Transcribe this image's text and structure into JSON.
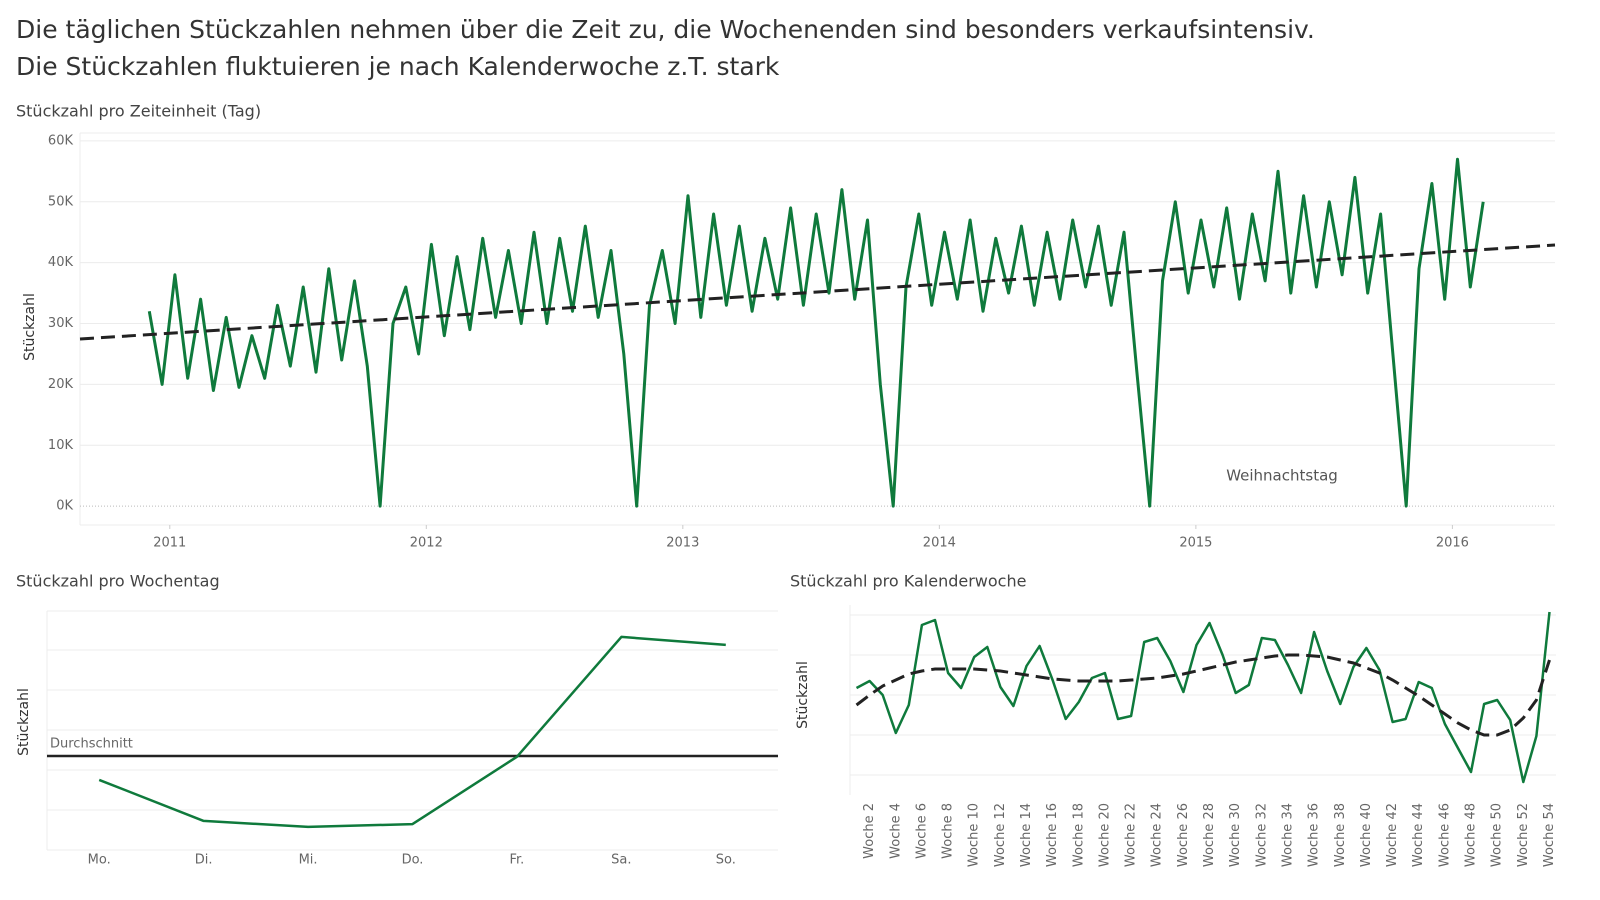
{
  "title_lines": [
    "Die täglichen Stückzahlen nehmen über die Zeit zu, die Wochenenden sind besonders verkaufsintensiv.",
    "Die Stückzahlen fluktuieren je nach Kalenderwoche z.T. stark"
  ],
  "chart_data": [
    {
      "type": "line",
      "title": "Stückzahl pro Zeiteinheit (Tag)",
      "y_label": "Stückzahl",
      "color": "#0f7a3c",
      "annotation": "Weihnachtstag",
      "xlim": [
        2010.65,
        2016.4
      ],
      "xticks": [
        2011,
        2012,
        2013,
        2014,
        2015,
        2016
      ],
      "ylim": [
        -3100,
        61300
      ],
      "yticks": [
        {
          "value": 0,
          "label": "0K"
        },
        {
          "value": 10000,
          "label": "10K"
        },
        {
          "value": 20000,
          "label": "20K"
        },
        {
          "value": 30000,
          "label": "30K"
        },
        {
          "value": 40000,
          "label": "40K"
        },
        {
          "value": 50000,
          "label": "50K"
        },
        {
          "value": 60000,
          "label": "60K"
        }
      ],
      "x": [
        2010.92,
        2010.97,
        2011.02,
        2011.07,
        2011.12,
        2011.17,
        2011.22,
        2011.27,
        2011.32,
        2011.37,
        2011.42,
        2011.47,
        2011.52,
        2011.57,
        2011.62,
        2011.67,
        2011.72,
        2011.77,
        2011.82,
        2011.87,
        2011.92,
        2011.97,
        2012.02,
        2012.07,
        2012.12,
        2012.17,
        2012.22,
        2012.27,
        2012.32,
        2012.37,
        2012.42,
        2012.47,
        2012.52,
        2012.57,
        2012.62,
        2012.67,
        2012.72,
        2012.77,
        2012.82,
        2012.87,
        2012.92,
        2012.97,
        2013.02,
        2013.07,
        2013.12,
        2013.17,
        2013.22,
        2013.27,
        2013.32,
        2013.37,
        2013.42,
        2013.47,
        2013.52,
        2013.57,
        2013.62,
        2013.67,
        2013.72,
        2013.77,
        2013.82,
        2013.87,
        2013.92,
        2013.97,
        2014.02,
        2014.07,
        2014.12,
        2014.17,
        2014.22,
        2014.27,
        2014.32,
        2014.37,
        2014.42,
        2014.47,
        2014.52,
        2014.57,
        2014.62,
        2014.67,
        2014.72,
        2014.77,
        2014.82,
        2014.87,
        2014.92,
        2014.97,
        2015.02,
        2015.07,
        2015.12,
        2015.17,
        2015.22,
        2015.27,
        2015.32,
        2015.37,
        2015.42,
        2015.47,
        2015.52,
        2015.57,
        2015.62,
        2015.67,
        2015.72,
        2015.77,
        2015.82,
        2015.87,
        2015.92,
        2015.97,
        2016.02,
        2016.07,
        2016.12
      ],
      "values": [
        32000,
        20000,
        38000,
        21000,
        34000,
        19000,
        31000,
        19500,
        28000,
        21000,
        33000,
        23000,
        36000,
        22000,
        39000,
        24000,
        37000,
        23000,
        0,
        30000,
        36000,
        25000,
        43000,
        28000,
        41000,
        29000,
        44000,
        31000,
        42000,
        30000,
        45000,
        30000,
        44000,
        32000,
        46000,
        31000,
        42000,
        25000,
        0,
        33000,
        42000,
        30000,
        51000,
        31000,
        48000,
        33000,
        46000,
        32000,
        44000,
        34000,
        49000,
        33000,
        48000,
        35000,
        52000,
        34000,
        47000,
        20000,
        0,
        36000,
        48000,
        33000,
        45000,
        34000,
        47000,
        32000,
        44000,
        35000,
        46000,
        33000,
        45000,
        34000,
        47000,
        36000,
        46000,
        33000,
        45000,
        22000,
        0,
        37000,
        50000,
        35000,
        47000,
        36000,
        49000,
        34000,
        48000,
        37000,
        55000,
        35000,
        51000,
        36000,
        50000,
        38000,
        54000,
        35000,
        48000,
        24000,
        0,
        39000,
        53000,
        34000,
        57000,
        36000,
        50000
      ],
      "trend": {
        "color": "#222222",
        "x": [
          2010.65,
          2016.4
        ],
        "values": [
          27450,
          42900
        ]
      }
    },
    {
      "type": "line",
      "title": "Stückzahl pro Wochentag",
      "y_label": "Stückzahl",
      "color": "#0f7a3c",
      "categories": [
        "Mo.",
        "Di.",
        "Mi.",
        "Do.",
        "Fr.",
        "Sa.",
        "So."
      ],
      "values": [
        8760000,
        7730000,
        7580000,
        7650000,
        9340000,
        12350000,
        12150000
      ],
      "ylim": [
        7000000,
        13000000
      ],
      "average": 9360000,
      "average_label": "Durchschnitt"
    },
    {
      "type": "line",
      "title": "Stückzahl pro Kalenderwoche",
      "y_label": "Stückzahl",
      "color": "#0f7a3c",
      "categories": [
        null,
        "Woche 2",
        null,
        "Woche 4",
        null,
        "Woche 6",
        null,
        "Woche 8",
        null,
        "Woche 10",
        null,
        "Woche 12",
        null,
        "Woche 14",
        null,
        "Woche 16",
        null,
        "Woche 18",
        null,
        "Woche 20",
        null,
        "Woche 22",
        null,
        "Woche 24",
        null,
        "Woche 26",
        null,
        "Woche 28",
        null,
        "Woche 30",
        null,
        "Woche 32",
        null,
        "Woche 34",
        null,
        "Woche 36",
        null,
        "Woche 38",
        null,
        "Woche 40",
        null,
        "Woche 42",
        null,
        "Woche 44",
        null,
        "Woche 46",
        null,
        "Woche 48",
        null,
        "Woche 50",
        null,
        "Woche 52",
        null,
        "Woche 54"
      ],
      "values": [
        1217500,
        1235000,
        1200000,
        1105000,
        1175000,
        1375000,
        1387500,
        1255000,
        1217500,
        1295000,
        1320000,
        1220000,
        1172500,
        1272500,
        1322500,
        1237500,
        1140000,
        1182500,
        1242500,
        1255000,
        1140000,
        1147500,
        1332500,
        1342500,
        1285000,
        1207500,
        1325000,
        1380000,
        1300000,
        1205000,
        1225000,
        1342500,
        1337500,
        1275000,
        1205000,
        1357500,
        1260000,
        1177500,
        1270000,
        1317500,
        1262500,
        1132500,
        1140000,
        1232500,
        1217500,
        1127500,
        1067500,
        1007500,
        1177500,
        1187500,
        1137500,
        982500,
        1097500,
        1407500
      ],
      "ylim": [
        950000,
        1425000
      ],
      "trend": {
        "color": "#222222",
        "values": [
          1175000,
          1200000,
          1222500,
          1237500,
          1252500,
          1260000,
          1265000,
          1265000,
          1265000,
          1265000,
          1262500,
          1260000,
          1255000,
          1250000,
          1245000,
          1240000,
          1237500,
          1235000,
          1235000,
          1235000,
          1235000,
          1237500,
          1240000,
          1242500,
          1247500,
          1252500,
          1260000,
          1267500,
          1275000,
          1282500,
          1287500,
          1292500,
          1297500,
          1300000,
          1300000,
          1297500,
          1295000,
          1287500,
          1280000,
          1267500,
          1255000,
          1237500,
          1217500,
          1197500,
          1175000,
          1152500,
          1130000,
          1112500,
          1100000,
          1100000,
          1112500,
          1142500,
          1187500,
          1287500
        ]
      }
    }
  ]
}
